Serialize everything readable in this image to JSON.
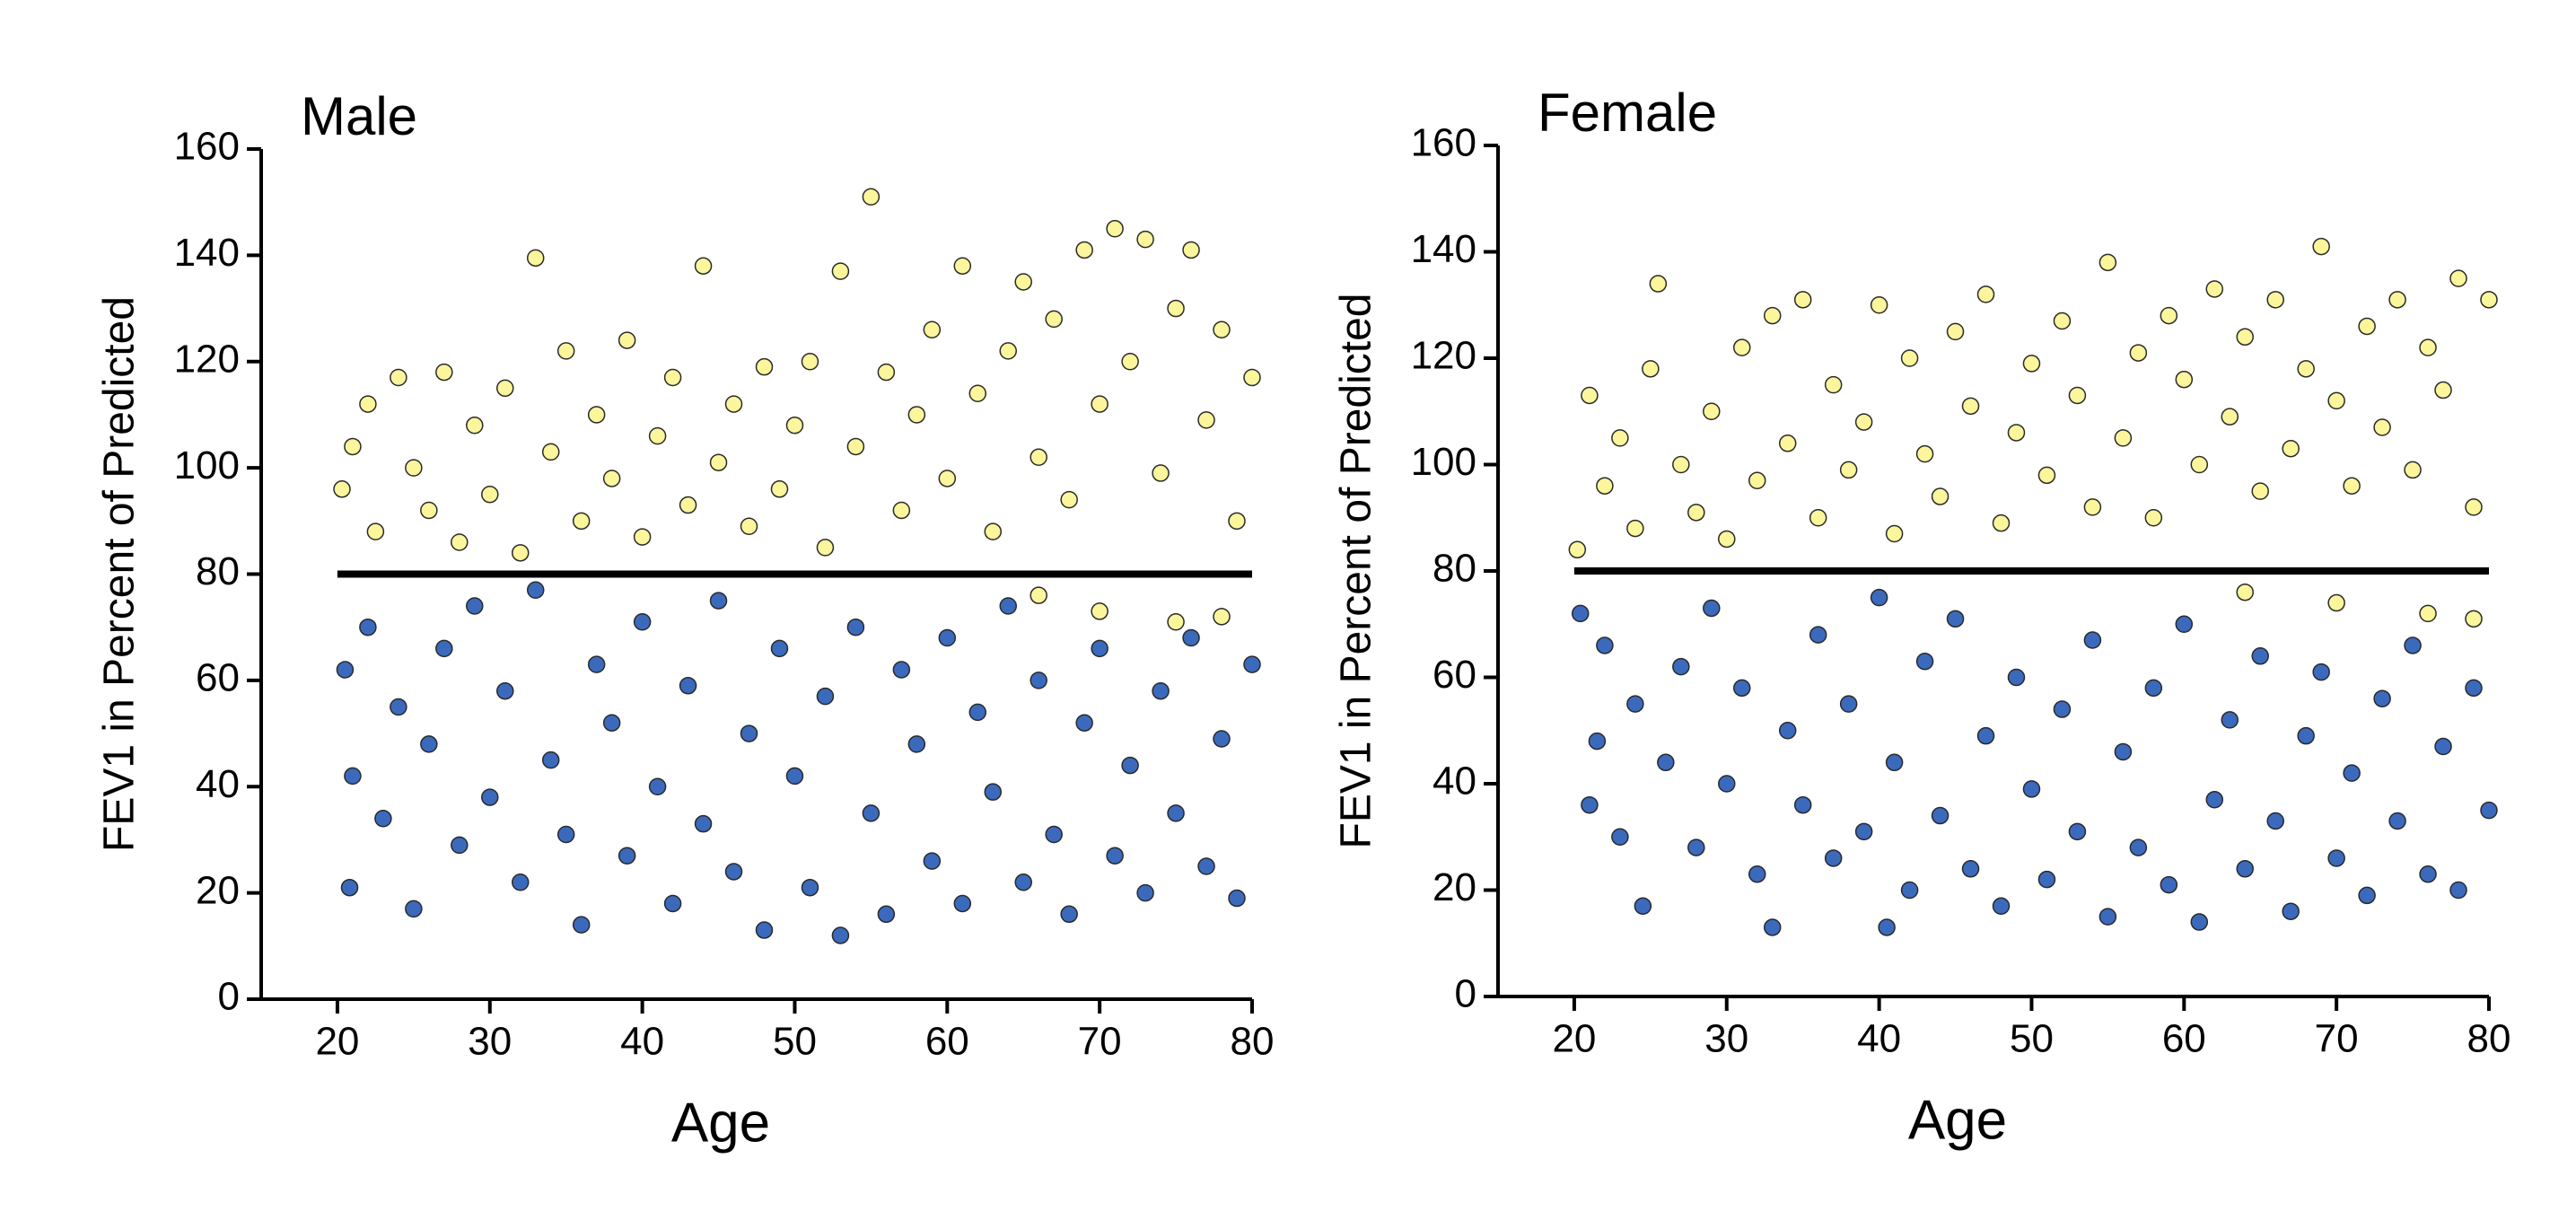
{
  "chart_data": [
    {
      "type": "scatter",
      "title": "Male",
      "x_label": "Age",
      "y_label": "FEV1 in Percent of Predicted",
      "xlim": [
        15,
        80
      ],
      "xticks": [
        20,
        30,
        40,
        50,
        60,
        70,
        80
      ],
      "ylim": [
        0,
        160
      ],
      "yticks": [
        0,
        20,
        40,
        60,
        80,
        100,
        120,
        140,
        160
      ],
      "hline": {
        "y": 80,
        "x": [
          20,
          80
        ],
        "color": "#000000"
      },
      "series": [
        {
          "color": "#fbf59b",
          "x": [
            20.3,
            21,
            22,
            22.5,
            24,
            25,
            26,
            27,
            28,
            29,
            30,
            31,
            32,
            33,
            34,
            35,
            36,
            37,
            38,
            39,
            40,
            41,
            42,
            43,
            44,
            45,
            46,
            47,
            48,
            49,
            50,
            51,
            52,
            53,
            54,
            55,
            56,
            57,
            58,
            59,
            60,
            61,
            62,
            63,
            64,
            65,
            66,
            67,
            68,
            69,
            70,
            71,
            72,
            73,
            74,
            75,
            76,
            77,
            78,
            79,
            80,
            66,
            70,
            75,
            78
          ],
          "y": [
            96,
            104,
            112,
            88,
            117,
            100,
            92,
            118,
            86,
            108,
            95,
            115,
            84,
            139.5,
            103,
            122,
            90,
            110,
            98,
            124,
            87,
            106,
            117,
            93,
            138,
            101,
            112,
            89,
            119,
            96,
            108,
            120,
            85,
            137,
            104,
            151,
            118,
            92,
            110,
            126,
            98,
            138,
            114,
            88,
            122,
            135,
            102,
            128,
            94,
            141,
            112,
            145,
            120,
            143,
            99,
            130,
            141,
            109,
            126,
            90,
            117,
            76,
            73,
            71,
            72
          ]
        },
        {
          "color": "#3b6abd",
          "x": [
            20.5,
            20.8,
            21,
            22,
            23,
            24,
            25,
            26,
            27,
            28,
            29,
            30,
            31,
            32,
            33,
            34,
            35,
            36,
            37,
            38,
            39,
            40,
            41,
            42,
            43,
            44,
            45,
            46,
            47,
            48,
            49,
            50,
            51,
            52,
            53,
            54,
            55,
            56,
            57,
            58,
            59,
            60,
            61,
            62,
            63,
            64,
            65,
            66,
            67,
            68,
            69,
            70,
            71,
            72,
            73,
            74,
            75,
            76,
            77,
            78,
            79,
            80
          ],
          "y": [
            62,
            21,
            42,
            70,
            34,
            55,
            17,
            48,
            66,
            29,
            74,
            38,
            58,
            22,
            77,
            45,
            31,
            14,
            63,
            52,
            27,
            71,
            40,
            18,
            59,
            33,
            75,
            24,
            50,
            13,
            66,
            42,
            21,
            57,
            12,
            70,
            35,
            16,
            62,
            48,
            26,
            68,
            18,
            54,
            39,
            74,
            22,
            60,
            31,
            16,
            52,
            66,
            27,
            44,
            20,
            58,
            35,
            68,
            25,
            49,
            19,
            63
          ]
        }
      ]
    },
    {
      "type": "scatter",
      "title": "Female",
      "x_label": "Age",
      "y_label": "FEV1 in Percent of Predicted",
      "xlim": [
        15,
        80
      ],
      "xticks": [
        20,
        30,
        40,
        50,
        60,
        70,
        80
      ],
      "ylim": [
        0,
        160
      ],
      "yticks": [
        0,
        20,
        40,
        60,
        80,
        100,
        120,
        140,
        160
      ],
      "hline": {
        "y": 80,
        "x": [
          20,
          80
        ],
        "color": "#000000"
      },
      "series": [
        {
          "color": "#fbf59b",
          "x": [
            20.2,
            21,
            22,
            23,
            24,
            25,
            25.5,
            27,
            28,
            29,
            30,
            31,
            32,
            33,
            34,
            35,
            36,
            37,
            38,
            39,
            40,
            41,
            42,
            43,
            44,
            45,
            46,
            47,
            48,
            49,
            50,
            51,
            52,
            53,
            54,
            55,
            56,
            57,
            58,
            59,
            60,
            61,
            62,
            63,
            64,
            65,
            66,
            67,
            68,
            69,
            70,
            71,
            72,
            73,
            74,
            75,
            76,
            77,
            78,
            79,
            80,
            64,
            70,
            76,
            79
          ],
          "y": [
            84,
            113,
            96,
            105,
            88,
            118,
            134,
            100,
            91,
            110,
            86,
            122,
            97,
            128,
            104,
            131,
            90,
            115,
            99,
            108,
            130,
            87,
            120,
            102,
            94,
            125,
            111,
            132,
            89,
            106,
            119,
            98,
            127,
            113,
            92,
            138,
            105,
            121,
            90,
            128,
            116,
            100,
            133,
            109,
            124,
            95,
            131,
            103,
            118,
            141,
            112,
            96,
            126,
            107,
            131,
            99,
            122,
            114,
            135,
            92,
            131,
            76,
            74,
            72,
            71
          ]
        },
        {
          "color": "#3b6abd",
          "x": [
            20.4,
            21,
            21.5,
            22,
            23,
            24,
            24.5,
            26,
            27,
            28,
            29,
            30,
            31,
            32,
            33,
            34,
            35,
            36,
            37,
            38,
            39,
            40,
            40.5,
            41,
            42,
            43,
            44,
            45,
            46,
            47,
            48,
            49,
            50,
            51,
            52,
            53,
            54,
            55,
            56,
            57,
            58,
            59,
            60,
            61,
            62,
            63,
            64,
            65,
            66,
            67,
            68,
            69,
            70,
            71,
            72,
            73,
            74,
            75,
            76,
            77,
            78,
            79,
            80
          ],
          "y": [
            72,
            36,
            48,
            66,
            30,
            55,
            17,
            44,
            62,
            28,
            73,
            40,
            58,
            23,
            13,
            50,
            36,
            68,
            26,
            55,
            31,
            75,
            13,
            44,
            20,
            63,
            34,
            71,
            24,
            49,
            17,
            60,
            39,
            22,
            54,
            31,
            67,
            15,
            46,
            28,
            58,
            21,
            70,
            14,
            37,
            52,
            24,
            64,
            33,
            16,
            49,
            61,
            26,
            42,
            19,
            56,
            33,
            66,
            23,
            47,
            20,
            58,
            35
          ]
        }
      ]
    }
  ]
}
